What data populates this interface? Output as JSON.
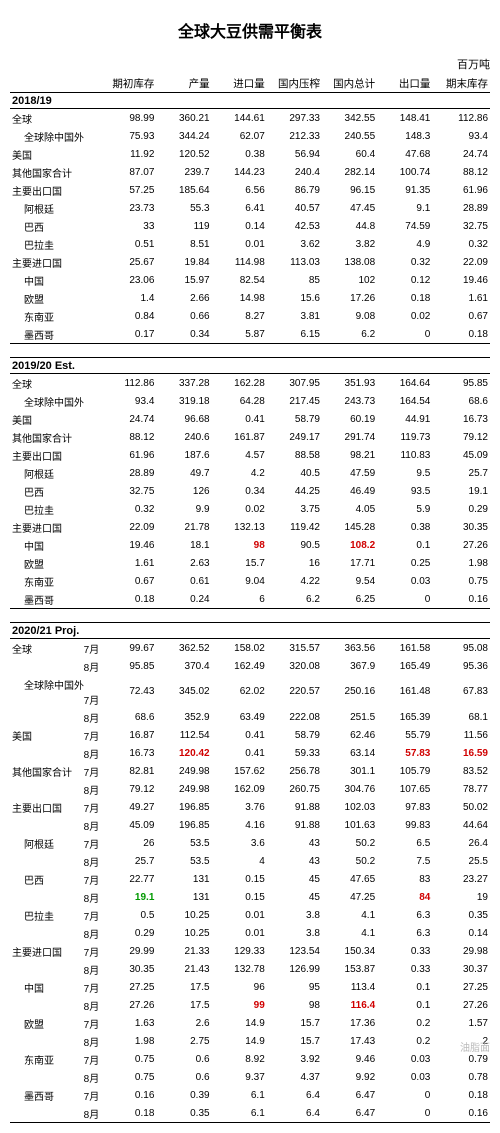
{
  "title": "全球大豆供需平衡表",
  "unit": "百万吨",
  "watermark": "油脂面",
  "columns": [
    "",
    "期初库存",
    "产量",
    "进口量",
    "国内压榨",
    "国内总计",
    "出口量",
    "期末库存"
  ],
  "col_widths": [
    "19%",
    "11.5%",
    "11.5%",
    "11.5%",
    "11.5%",
    "11.5%",
    "11.5%",
    "12%"
  ],
  "sections": [
    {
      "label": "2018/19",
      "rows": [
        {
          "cells": [
            "全球",
            "98.99",
            "360.21",
            "144.61",
            "297.33",
            "342.55",
            "148.41",
            "112.86"
          ]
        },
        {
          "cells": [
            "全球除中国外",
            "75.93",
            "344.24",
            "62.07",
            "212.33",
            "240.55",
            "148.3",
            "93.4"
          ],
          "indent": 1
        },
        {
          "cells": [
            "美国",
            "11.92",
            "120.52",
            "0.38",
            "56.94",
            "60.4",
            "47.68",
            "24.74"
          ]
        },
        {
          "cells": [
            "其他国家合计",
            "87.07",
            "239.7",
            "144.23",
            "240.4",
            "282.14",
            "100.74",
            "88.12"
          ]
        },
        {
          "cells": [
            "主要出口国",
            "57.25",
            "185.64",
            "6.56",
            "86.79",
            "96.15",
            "91.35",
            "61.96"
          ]
        },
        {
          "cells": [
            "阿根廷",
            "23.73",
            "55.3",
            "6.41",
            "40.57",
            "47.45",
            "9.1",
            "28.89"
          ],
          "indent": 1
        },
        {
          "cells": [
            "巴西",
            "33",
            "119",
            "0.14",
            "42.53",
            "44.8",
            "74.59",
            "32.75"
          ],
          "indent": 1
        },
        {
          "cells": [
            "巴拉圭",
            "0.51",
            "8.51",
            "0.01",
            "3.62",
            "3.82",
            "4.9",
            "0.32"
          ],
          "indent": 1
        },
        {
          "cells": [
            "主要进口国",
            "25.67",
            "19.84",
            "114.98",
            "113.03",
            "138.08",
            "0.32",
            "22.09"
          ]
        },
        {
          "cells": [
            "中国",
            "23.06",
            "15.97",
            "82.54",
            "85",
            "102",
            "0.12",
            "19.46"
          ],
          "indent": 1
        },
        {
          "cells": [
            "欧盟",
            "1.4",
            "2.66",
            "14.98",
            "15.6",
            "17.26",
            "0.18",
            "1.61"
          ],
          "indent": 1
        },
        {
          "cells": [
            "东南亚",
            "0.84",
            "0.66",
            "8.27",
            "3.81",
            "9.08",
            "0.02",
            "0.67"
          ],
          "indent": 1
        },
        {
          "cells": [
            "墨西哥",
            "0.17",
            "0.34",
            "5.87",
            "6.15",
            "6.2",
            "0",
            "0.18"
          ],
          "indent": 1
        }
      ]
    },
    {
      "label": "2019/20 Est.",
      "rows": [
        {
          "cells": [
            "全球",
            "112.86",
            "337.28",
            "162.28",
            "307.95",
            "351.93",
            "164.64",
            "95.85"
          ]
        },
        {
          "cells": [
            "全球除中国外",
            "93.4",
            "319.18",
            "64.28",
            "217.45",
            "243.73",
            "164.54",
            "68.6"
          ],
          "indent": 1
        },
        {
          "cells": [
            "美国",
            "24.74",
            "96.68",
            "0.41",
            "58.79",
            "60.19",
            "44.91",
            "16.73"
          ]
        },
        {
          "cells": [
            "其他国家合计",
            "88.12",
            "240.6",
            "161.87",
            "249.17",
            "291.74",
            "119.73",
            "79.12"
          ]
        },
        {
          "cells": [
            "主要出口国",
            "61.96",
            "187.6",
            "4.57",
            "88.58",
            "98.21",
            "110.83",
            "45.09"
          ]
        },
        {
          "cells": [
            "阿根廷",
            "28.89",
            "49.7",
            "4.2",
            "40.5",
            "47.59",
            "9.5",
            "25.7"
          ],
          "indent": 1
        },
        {
          "cells": [
            "巴西",
            "32.75",
            "126",
            "0.34",
            "44.25",
            "46.49",
            "93.5",
            "19.1"
          ],
          "indent": 1
        },
        {
          "cells": [
            "巴拉圭",
            "0.32",
            "9.9",
            "0.02",
            "3.75",
            "4.05",
            "5.9",
            "0.29"
          ],
          "indent": 1
        },
        {
          "cells": [
            "主要进口国",
            "22.09",
            "21.78",
            "132.13",
            "119.42",
            "145.28",
            "0.38",
            "30.35"
          ]
        },
        {
          "cells": [
            "中国",
            "19.46",
            "18.1",
            "98",
            "90.5",
            "108.2",
            "0.1",
            "27.26"
          ],
          "indent": 1,
          "hl": {
            "3": "red",
            "5": "red"
          }
        },
        {
          "cells": [
            "欧盟",
            "1.61",
            "2.63",
            "15.7",
            "16",
            "17.71",
            "0.25",
            "1.98"
          ],
          "indent": 1
        },
        {
          "cells": [
            "东南亚",
            "0.67",
            "0.61",
            "9.04",
            "4.22",
            "9.54",
            "0.03",
            "0.75"
          ],
          "indent": 1
        },
        {
          "cells": [
            "墨西哥",
            "0.18",
            "0.24",
            "6",
            "6.2",
            "6.25",
            "0",
            "0.16"
          ],
          "indent": 1
        }
      ]
    },
    {
      "label": "2020/21 Proj.",
      "rows": [
        {
          "cells": [
            "全球",
            "7月",
            "99.67",
            "362.52",
            "158.02",
            "315.57",
            "363.56",
            "161.58",
            "95.08"
          ],
          "twocol": true
        },
        {
          "cells": [
            "",
            "8月",
            "95.85",
            "370.4",
            "162.49",
            "320.08",
            "367.9",
            "165.49",
            "95.36"
          ],
          "twocol": true
        },
        {
          "cells": [
            "全球除中国外",
            "7月",
            "72.43",
            "345.02",
            "62.02",
            "220.57",
            "250.16",
            "161.48",
            "67.83"
          ],
          "twocol": true,
          "indent": 1
        },
        {
          "cells": [
            "",
            "8月",
            "68.6",
            "352.9",
            "63.49",
            "222.08",
            "251.5",
            "165.39",
            "68.1"
          ],
          "twocol": true,
          "indent": 1
        },
        {
          "cells": [
            "美国",
            "7月",
            "16.87",
            "112.54",
            "0.41",
            "58.79",
            "62.46",
            "55.79",
            "11.56"
          ],
          "twocol": true
        },
        {
          "cells": [
            "",
            "8月",
            "16.73",
            "120.42",
            "0.41",
            "59.33",
            "63.14",
            "57.83",
            "16.59"
          ],
          "twocol": true,
          "hl": {
            "2": "red",
            "6": "red",
            "7": "red"
          }
        },
        {
          "cells": [
            "其他国家合计",
            "7月",
            "82.81",
            "249.98",
            "157.62",
            "256.78",
            "301.1",
            "105.79",
            "83.52"
          ],
          "twocol": true
        },
        {
          "cells": [
            "",
            "8月",
            "79.12",
            "249.98",
            "162.09",
            "260.75",
            "304.76",
            "107.65",
            "78.77"
          ],
          "twocol": true
        },
        {
          "cells": [
            "主要出口国",
            "7月",
            "49.27",
            "196.85",
            "3.76",
            "91.88",
            "102.03",
            "97.83",
            "50.02"
          ],
          "twocol": true
        },
        {
          "cells": [
            "",
            "8月",
            "45.09",
            "196.85",
            "4.16",
            "91.88",
            "101.63",
            "99.83",
            "44.64"
          ],
          "twocol": true
        },
        {
          "cells": [
            "阿根廷",
            "7月",
            "26",
            "53.5",
            "3.6",
            "43",
            "50.2",
            "6.5",
            "26.4"
          ],
          "twocol": true,
          "indent": 1
        },
        {
          "cells": [
            "",
            "8月",
            "25.7",
            "53.5",
            "4",
            "43",
            "50.2",
            "7.5",
            "25.5"
          ],
          "twocol": true,
          "indent": 1
        },
        {
          "cells": [
            "巴西",
            "7月",
            "22.77",
            "131",
            "0.15",
            "45",
            "47.65",
            "83",
            "23.27"
          ],
          "twocol": true,
          "indent": 1
        },
        {
          "cells": [
            "",
            "8月",
            "19.1",
            "131",
            "0.15",
            "45",
            "47.25",
            "84",
            "19"
          ],
          "twocol": true,
          "indent": 1,
          "hl": {
            "1": "green",
            "6": "red"
          }
        },
        {
          "cells": [
            "巴拉圭",
            "7月",
            "0.5",
            "10.25",
            "0.01",
            "3.8",
            "4.1",
            "6.3",
            "0.35"
          ],
          "twocol": true,
          "indent": 1
        },
        {
          "cells": [
            "",
            "8月",
            "0.29",
            "10.25",
            "0.01",
            "3.8",
            "4.1",
            "6.3",
            "0.14"
          ],
          "twocol": true,
          "indent": 1
        },
        {
          "cells": [
            "主要进口国",
            "7月",
            "29.99",
            "21.33",
            "129.33",
            "123.54",
            "150.34",
            "0.33",
            "29.98"
          ],
          "twocol": true
        },
        {
          "cells": [
            "",
            "8月",
            "30.35",
            "21.43",
            "132.78",
            "126.99",
            "153.87",
            "0.33",
            "30.37"
          ],
          "twocol": true
        },
        {
          "cells": [
            "中国",
            "7月",
            "27.25",
            "17.5",
            "96",
            "95",
            "113.4",
            "0.1",
            "27.25"
          ],
          "twocol": true,
          "indent": 1
        },
        {
          "cells": [
            "",
            "8月",
            "27.26",
            "17.5",
            "99",
            "98",
            "116.4",
            "0.1",
            "27.26"
          ],
          "twocol": true,
          "indent": 1,
          "hl": {
            "3": "red",
            "5": "red"
          }
        },
        {
          "cells": [
            "欧盟",
            "7月",
            "1.63",
            "2.6",
            "14.9",
            "15.7",
            "17.36",
            "0.2",
            "1.57"
          ],
          "twocol": true,
          "indent": 1
        },
        {
          "cells": [
            "",
            "8月",
            "1.98",
            "2.75",
            "14.9",
            "15.7",
            "17.43",
            "0.2",
            "2"
          ],
          "twocol": true,
          "indent": 1
        },
        {
          "cells": [
            "东南亚",
            "7月",
            "0.75",
            "0.6",
            "8.92",
            "3.92",
            "9.46",
            "0.03",
            "0.79"
          ],
          "twocol": true,
          "indent": 1
        },
        {
          "cells": [
            "",
            "8月",
            "0.75",
            "0.6",
            "9.37",
            "4.37",
            "9.92",
            "0.03",
            "0.78"
          ],
          "twocol": true,
          "indent": 1
        },
        {
          "cells": [
            "墨西哥",
            "7月",
            "0.16",
            "0.39",
            "6.1",
            "6.4",
            "6.47",
            "0",
            "0.18"
          ],
          "twocol": true,
          "indent": 1
        },
        {
          "cells": [
            "",
            "8月",
            "0.18",
            "0.35",
            "6.1",
            "6.4",
            "6.47",
            "0",
            "0.16"
          ],
          "twocol": true,
          "indent": 1
        }
      ]
    }
  ]
}
